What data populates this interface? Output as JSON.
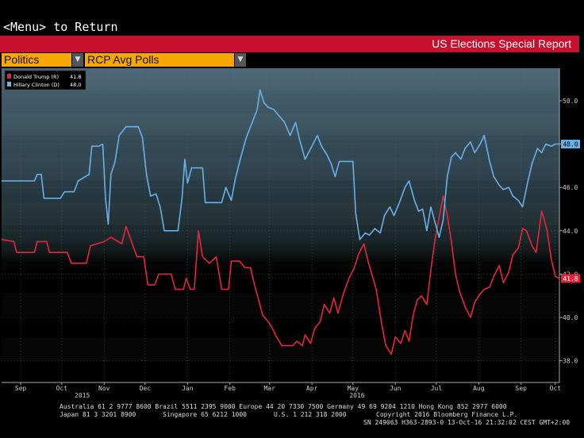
{
  "header": {
    "menu_text": "<Menu> to Return",
    "report_title": "US Elections Special Report",
    "dropdown_category": "Politics",
    "dropdown_view": "RCP Avg Polls"
  },
  "colors": {
    "trump": "#e8243c",
    "clinton": "#6ab0e8",
    "accent_red": "#c8102e",
    "accent_amber": "#f7a700"
  },
  "chart_data": {
    "type": "line",
    "legend": [
      {
        "name": "Donald Trump (R)",
        "value": "41.8",
        "color": "#e8243c"
      },
      {
        "name": "Hillary Clinton (D)",
        "value": "48.0",
        "color": "#6ab0e8"
      }
    ],
    "ylim": [
      37.0,
      51.5
    ],
    "y_ticks": [
      "38.0",
      "40.0",
      "42.0",
      "44.0",
      "46.0",
      "48.0",
      "50.0"
    ],
    "x_range": [
      "2015-09-01",
      "2016-10-13"
    ],
    "x_ticks": [
      {
        "label": "Sep",
        "date": "2015-09-15"
      },
      {
        "label": "Oct",
        "date": "2015-10-15"
      },
      {
        "label": "Nov",
        "date": "2015-11-15"
      },
      {
        "label": "Dec",
        "date": "2015-12-15"
      },
      {
        "label": "Jan",
        "date": "2016-01-15"
      },
      {
        "label": "Feb",
        "date": "2016-02-15"
      },
      {
        "label": "Mar",
        "date": "2016-03-15"
      },
      {
        "label": "Apr",
        "date": "2016-04-15"
      },
      {
        "label": "May",
        "date": "2016-05-15"
      },
      {
        "label": "Jun",
        "date": "2016-06-15"
      },
      {
        "label": "Jul",
        "date": "2016-07-15"
      },
      {
        "label": "Aug",
        "date": "2016-08-15"
      },
      {
        "label": "Sep",
        "date": "2016-09-15"
      },
      {
        "label": "Oct",
        "date": "2016-10-10"
      }
    ],
    "year_labels": [
      {
        "label": "2015",
        "date": "2015-10-30"
      },
      {
        "label": "2016",
        "date": "2016-05-18"
      }
    ],
    "last_value_labels": {
      "trump": "41.8",
      "clinton": "48.0"
    },
    "series": [
      {
        "name": "Donald Trump (R)",
        "key": "trump",
        "points": [
          [
            "2015-09-01",
            43.6
          ],
          [
            "2015-09-10",
            43.5
          ],
          [
            "2015-09-12",
            43.0
          ],
          [
            "2015-09-25",
            43.0
          ],
          [
            "2015-09-27",
            43.5
          ],
          [
            "2015-10-04",
            43.5
          ],
          [
            "2015-10-06",
            43.0
          ],
          [
            "2015-10-19",
            43.0
          ],
          [
            "2015-10-22",
            42.5
          ],
          [
            "2015-11-02",
            42.5
          ],
          [
            "2015-11-05",
            43.3
          ],
          [
            "2015-11-15",
            43.5
          ],
          [
            "2015-11-20",
            43.7
          ],
          [
            "2015-11-28",
            43.4
          ],
          [
            "2015-12-01",
            44.2
          ],
          [
            "2015-12-05",
            43.5
          ],
          [
            "2015-12-09",
            42.8
          ],
          [
            "2015-12-14",
            42.8
          ],
          [
            "2015-12-17",
            41.5
          ],
          [
            "2015-12-22",
            41.5
          ],
          [
            "2015-12-25",
            42.0
          ],
          [
            "2016-01-03",
            42.0
          ],
          [
            "2016-01-06",
            41.3
          ],
          [
            "2016-01-12",
            41.3
          ],
          [
            "2016-01-14",
            41.8
          ],
          [
            "2016-01-17",
            41.3
          ],
          [
            "2016-01-20",
            41.3
          ],
          [
            "2016-01-23",
            44.0
          ],
          [
            "2016-01-26",
            42.8
          ],
          [
            "2016-01-31",
            42.5
          ],
          [
            "2016-02-05",
            42.8
          ],
          [
            "2016-02-09",
            41.3
          ],
          [
            "2016-02-14",
            41.3
          ],
          [
            "2016-02-16",
            42.6
          ],
          [
            "2016-02-22",
            42.6
          ],
          [
            "2016-02-26",
            42.3
          ],
          [
            "2016-03-01",
            42.3
          ],
          [
            "2016-03-04",
            41.5
          ],
          [
            "2016-03-07",
            40.8
          ],
          [
            "2016-03-10",
            40.1
          ],
          [
            "2016-03-14",
            39.8
          ],
          [
            "2016-03-17",
            39.5
          ],
          [
            "2016-03-20",
            39.1
          ],
          [
            "2016-03-24",
            38.7
          ],
          [
            "2016-04-01",
            38.7
          ],
          [
            "2016-04-04",
            38.9
          ],
          [
            "2016-04-08",
            38.7
          ],
          [
            "2016-04-10",
            39.2
          ],
          [
            "2016-04-14",
            38.8
          ],
          [
            "2016-04-17",
            39.5
          ],
          [
            "2016-04-21",
            39.8
          ],
          [
            "2016-04-24",
            40.6
          ],
          [
            "2016-04-28",
            40.2
          ],
          [
            "2016-05-01",
            40.9
          ],
          [
            "2016-05-04",
            40.2
          ],
          [
            "2016-05-08",
            41.1
          ],
          [
            "2016-05-12",
            41.8
          ],
          [
            "2016-05-16",
            42.3
          ],
          [
            "2016-05-19",
            42.9
          ],
          [
            "2016-05-23",
            43.4
          ],
          [
            "2016-05-26",
            42.6
          ],
          [
            "2016-06-01",
            41.3
          ],
          [
            "2016-06-05",
            39.7
          ],
          [
            "2016-06-08",
            38.7
          ],
          [
            "2016-06-12",
            38.3
          ],
          [
            "2016-06-15",
            39.1
          ],
          [
            "2016-06-19",
            38.8
          ],
          [
            "2016-06-22",
            39.4
          ],
          [
            "2016-06-25",
            38.9
          ],
          [
            "2016-06-28",
            40.1
          ],
          [
            "2016-07-01",
            40.8
          ],
          [
            "2016-07-04",
            41.0
          ],
          [
            "2016-07-08",
            40.6
          ],
          [
            "2016-07-11",
            42.2
          ],
          [
            "2016-07-14",
            43.6
          ],
          [
            "2016-07-17",
            44.6
          ],
          [
            "2016-07-20",
            45.6
          ],
          [
            "2016-07-23",
            44.7
          ],
          [
            "2016-07-26",
            43.5
          ],
          [
            "2016-07-29",
            42.0
          ],
          [
            "2016-08-01",
            41.2
          ],
          [
            "2016-08-05",
            40.5
          ],
          [
            "2016-08-09",
            40.0
          ],
          [
            "2016-08-12",
            40.7
          ],
          [
            "2016-08-15",
            41.0
          ],
          [
            "2016-08-19",
            41.3
          ],
          [
            "2016-08-23",
            41.4
          ],
          [
            "2016-08-26",
            41.9
          ],
          [
            "2016-08-30",
            42.4
          ],
          [
            "2016-09-02",
            41.6
          ],
          [
            "2016-09-06",
            42.1
          ],
          [
            "2016-09-09",
            42.9
          ],
          [
            "2016-09-13",
            43.2
          ],
          [
            "2016-09-16",
            44.1
          ],
          [
            "2016-09-19",
            44.0
          ],
          [
            "2016-09-23",
            43.3
          ],
          [
            "2016-09-26",
            43.0
          ],
          [
            "2016-09-30",
            44.9
          ],
          [
            "2016-10-02",
            44.5
          ],
          [
            "2016-10-04",
            44.0
          ],
          [
            "2016-10-07",
            42.7
          ],
          [
            "2016-10-10",
            41.9
          ],
          [
            "2016-10-13",
            41.8
          ]
        ]
      },
      {
        "name": "Hillary Clinton (D)",
        "key": "clinton",
        "points": [
          [
            "2015-09-01",
            46.3
          ],
          [
            "2015-09-25",
            46.3
          ],
          [
            "2015-09-27",
            46.6
          ],
          [
            "2015-09-30",
            46.6
          ],
          [
            "2015-10-02",
            45.5
          ],
          [
            "2015-10-14",
            45.5
          ],
          [
            "2015-10-17",
            45.8
          ],
          [
            "2015-10-24",
            45.8
          ],
          [
            "2015-10-27",
            46.3
          ],
          [
            "2015-11-04",
            46.6
          ],
          [
            "2015-11-06",
            47.9
          ],
          [
            "2015-11-11",
            47.9
          ],
          [
            "2015-11-14",
            48.0
          ],
          [
            "2015-11-16",
            45.5
          ],
          [
            "2015-11-18",
            44.3
          ],
          [
            "2015-11-20",
            46.6
          ],
          [
            "2015-11-23",
            47.2
          ],
          [
            "2015-11-26",
            48.4
          ],
          [
            "2015-12-01",
            48.8
          ],
          [
            "2015-12-10",
            48.8
          ],
          [
            "2015-12-13",
            48.3
          ],
          [
            "2015-12-16",
            46.6
          ],
          [
            "2015-12-19",
            45.6
          ],
          [
            "2015-12-23",
            45.7
          ],
          [
            "2015-12-26",
            45.1
          ],
          [
            "2015-12-29",
            44.0
          ],
          [
            "2016-01-08",
            44.0
          ],
          [
            "2016-01-11",
            45.5
          ],
          [
            "2016-01-13",
            47.3
          ],
          [
            "2016-01-15",
            46.2
          ],
          [
            "2016-01-18",
            46.9
          ],
          [
            "2016-01-26",
            46.9
          ],
          [
            "2016-01-28",
            45.3
          ],
          [
            "2016-02-09",
            45.3
          ],
          [
            "2016-02-12",
            46.0
          ],
          [
            "2016-02-16",
            45.4
          ],
          [
            "2016-02-19",
            46.4
          ],
          [
            "2016-02-23",
            47.4
          ],
          [
            "2016-02-27",
            48.3
          ],
          [
            "2016-03-03",
            49.1
          ],
          [
            "2016-03-06",
            49.6
          ],
          [
            "2016-03-08",
            50.5
          ],
          [
            "2016-03-11",
            49.9
          ],
          [
            "2016-03-14",
            49.7
          ],
          [
            "2016-03-18",
            49.6
          ],
          [
            "2016-03-22",
            49.3
          ],
          [
            "2016-03-26",
            49.0
          ],
          [
            "2016-03-30",
            48.4
          ],
          [
            "2016-04-03",
            49.0
          ],
          [
            "2016-04-06",
            48.2
          ],
          [
            "2016-04-10",
            47.3
          ],
          [
            "2016-04-15",
            47.9
          ],
          [
            "2016-04-19",
            48.4
          ],
          [
            "2016-04-22",
            47.9
          ],
          [
            "2016-04-26",
            47.5
          ],
          [
            "2016-04-29",
            47.1
          ],
          [
            "2016-05-02",
            46.5
          ],
          [
            "2016-05-05",
            47.2
          ],
          [
            "2016-05-15",
            47.2
          ],
          [
            "2016-05-17",
            44.8
          ],
          [
            "2016-05-20",
            43.6
          ],
          [
            "2016-05-24",
            43.9
          ],
          [
            "2016-05-27",
            43.8
          ],
          [
            "2016-05-31",
            44.1
          ],
          [
            "2016-06-04",
            43.9
          ],
          [
            "2016-06-07",
            44.7
          ],
          [
            "2016-06-11",
            45.1
          ],
          [
            "2016-06-14",
            44.7
          ],
          [
            "2016-06-18",
            45.3
          ],
          [
            "2016-06-22",
            46.0
          ],
          [
            "2016-06-25",
            46.3
          ],
          [
            "2016-06-29",
            45.4
          ],
          [
            "2016-07-02",
            44.9
          ],
          [
            "2016-07-05",
            45.0
          ],
          [
            "2016-07-08",
            44.0
          ],
          [
            "2016-07-11",
            45.1
          ],
          [
            "2016-07-14",
            44.4
          ],
          [
            "2016-07-17",
            43.7
          ],
          [
            "2016-07-20",
            44.5
          ],
          [
            "2016-07-23",
            46.5
          ],
          [
            "2016-07-26",
            47.4
          ],
          [
            "2016-07-29",
            47.6
          ],
          [
            "2016-08-02",
            47.3
          ],
          [
            "2016-08-05",
            47.8
          ],
          [
            "2016-08-09",
            48.1
          ],
          [
            "2016-08-12",
            47.6
          ],
          [
            "2016-08-16",
            48.0
          ],
          [
            "2016-08-19",
            48.4
          ],
          [
            "2016-08-23",
            47.2
          ],
          [
            "2016-08-26",
            46.5
          ],
          [
            "2016-08-30",
            46.1
          ],
          [
            "2016-09-02",
            45.9
          ],
          [
            "2016-09-06",
            46.0
          ],
          [
            "2016-09-09",
            45.6
          ],
          [
            "2016-09-13",
            45.4
          ],
          [
            "2016-09-16",
            45.1
          ],
          [
            "2016-09-20",
            46.3
          ],
          [
            "2016-09-23",
            47.1
          ],
          [
            "2016-09-27",
            47.8
          ],
          [
            "2016-09-30",
            47.6
          ],
          [
            "2016-10-03",
            48.0
          ],
          [
            "2016-10-07",
            47.9
          ],
          [
            "2016-10-10",
            48.0
          ],
          [
            "2016-10-13",
            48.0
          ]
        ]
      }
    ]
  },
  "footer": {
    "line1": "Australia 61 2 9777 8600 Brazil 5511 2395 9000 Europe 44 20 7330 7500 Germany 49 69 9204 1210 Hong Kong 852 2977 6000",
    "line2a": "Japan 81 3 3201 8900",
    "line2b": "Singapore 65 6212 1000",
    "line2c": "U.S. 1 212 318 2000",
    "line2d": "Copyright 2016 Bloomberg Finance L.P.",
    "line3": "SN 249063 H363-2893-0 13-Oct-16 21:32:02 CEST GMT+2:00"
  }
}
